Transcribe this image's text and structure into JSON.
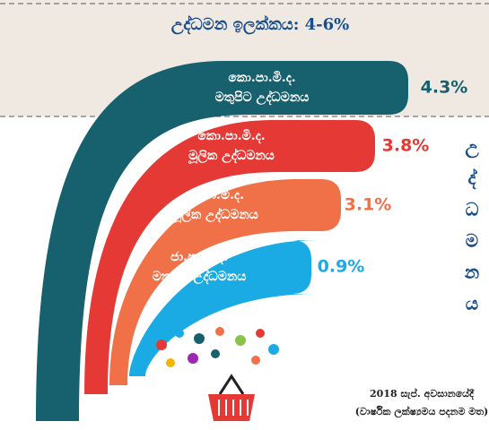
{
  "header": {
    "title": "උද්ධමන ඉලක්කය: 4-6%"
  },
  "bands": [
    {
      "lines": [
        "කො.පා.මි.ද.",
        "මතුපිට උද්ධමනය"
      ],
      "value": "4.3%",
      "color": "#17606e"
    },
    {
      "lines": [
        "කො.පා.මි.ද.",
        "මූලික උද්ධමනය"
      ],
      "value": "3.8%",
      "color": "#e53935"
    },
    {
      "lines": [
        "ජා.පා.මි.ද.",
        "මූලික උද්ධමනය"
      ],
      "value": "3.1%",
      "color": "#f07048"
    },
    {
      "lines": [
        "ජා.පා.මි.ද.",
        "මතුපිට උද්ධමනය"
      ],
      "value": "0.9%",
      "color": "#1aabe4"
    }
  ],
  "side_label": [
    "උ",
    "ද්",
    "ධ",
    "ම",
    "න",
    "ය"
  ],
  "footnote": [
    "2018 සැප්. අවසානයේදී",
    "(වාර්ෂික ලක්ෂ්‍යමය පදනම මත)"
  ]
}
